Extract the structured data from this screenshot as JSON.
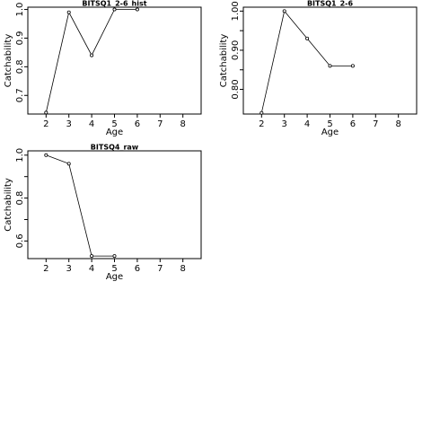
{
  "chart_data": [
    {
      "type": "line",
      "title": "BITSQ1_2-6_hist",
      "xlabel": "Age",
      "ylabel": "Catchability",
      "xlim": [
        1.2,
        8.8
      ],
      "ylim": [
        0.635,
        1.008
      ],
      "xticks": [
        2,
        3,
        4,
        5,
        6,
        7,
        8
      ],
      "yticks": [
        0.7,
        0.8,
        0.9,
        1.0
      ],
      "ytick_labels": [
        "0.7",
        "0.8",
        "0.9",
        "1.0"
      ],
      "grid": false,
      "series": [
        {
          "x": [
            2,
            3,
            4,
            5,
            6
          ],
          "y": [
            0.64,
            0.99,
            0.84,
            1.0,
            1.0
          ]
        }
      ]
    },
    {
      "type": "line",
      "title": "BITSQ1_2-6",
      "xlabel": "Age",
      "ylabel": "Catchability",
      "xlim": [
        1.2,
        8.8
      ],
      "ylim": [
        0.737,
        1.01
      ],
      "xticks": [
        2,
        3,
        4,
        5,
        6,
        7,
        8
      ],
      "yticks": [
        0.8,
        0.9,
        1.0
      ],
      "ytick_labels": [
        "0.80",
        "0.90",
        "1.00"
      ],
      "minor_yticks": [
        0.85,
        0.95
      ],
      "grid": false,
      "series": [
        {
          "x": [
            2,
            3,
            4,
            5,
            6
          ],
          "y": [
            0.74,
            1.0,
            0.93,
            0.86,
            0.86
          ]
        }
      ]
    },
    {
      "type": "line",
      "title": "BITSQ4_raw",
      "xlabel": "Age",
      "ylabel": "Catchability",
      "xlim": [
        1.2,
        8.8
      ],
      "ylim": [
        0.518,
        1.02
      ],
      "xticks": [
        2,
        3,
        4,
        5,
        6,
        7,
        8
      ],
      "yticks": [
        0.6,
        0.8,
        1.0
      ],
      "ytick_labels": [
        "0.6",
        "0.8",
        "1.0"
      ],
      "minor_yticks": [
        0.7,
        0.9
      ],
      "grid": false,
      "series": [
        {
          "x": [
            2,
            3,
            4,
            5
          ],
          "y": [
            1.0,
            0.96,
            0.53,
            0.53
          ]
        }
      ]
    }
  ]
}
